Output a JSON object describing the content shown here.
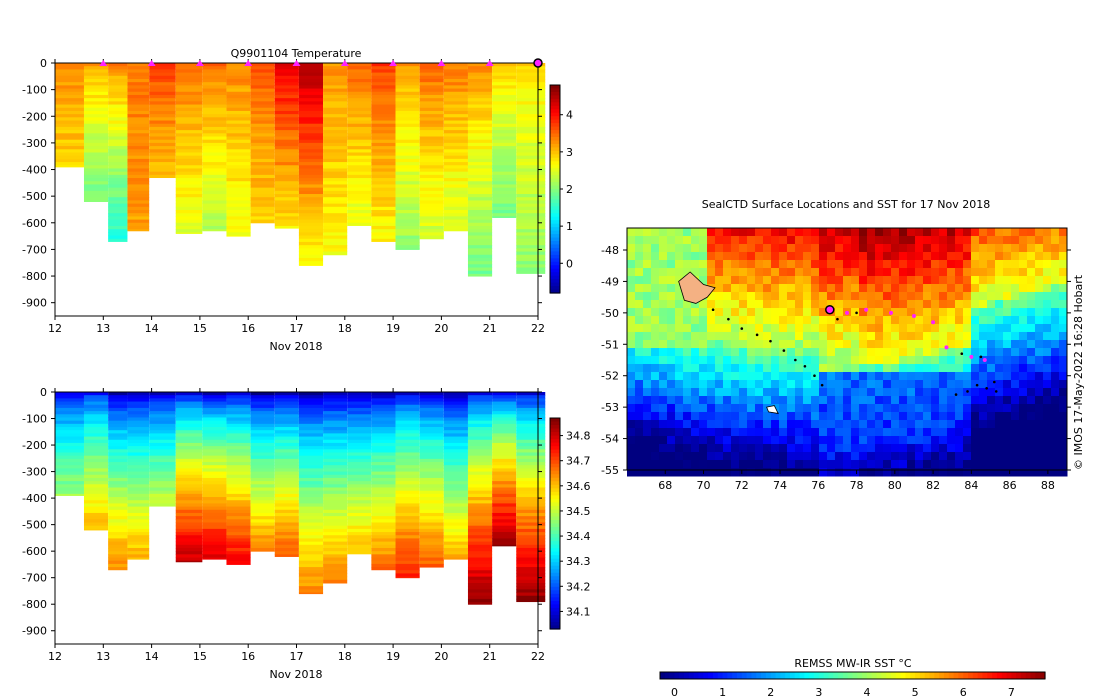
{
  "chart_data": [
    {
      "type": "heatmap",
      "title": "Q9901104  Temperature",
      "xlabel": "Nov 2018",
      "ylabel": "",
      "xlim": [
        12,
        22
      ],
      "ylim": [
        -950,
        0
      ],
      "xticks": [
        "12",
        "13",
        "14",
        "15",
        "16",
        "17",
        "18",
        "19",
        "20",
        "21",
        "22"
      ],
      "yticks": [
        "0",
        "-100",
        "-200",
        "-300",
        "-400",
        "-500",
        "-600",
        "-700",
        "-800",
        "-900"
      ],
      "colorbar": {
        "min": -0.8,
        "max": 4.8,
        "ticks": [
          "0",
          "1",
          "2",
          "3",
          "4"
        ]
      },
      "profiles": [
        {
          "x": 12.3,
          "depth": 390,
          "surface": 3.4,
          "deep": 2.9
        },
        {
          "x": 12.9,
          "depth": 520,
          "surface": 3.2,
          "deep": 1.9
        },
        {
          "x": 13.3,
          "depth": 670,
          "surface": 3.4,
          "deep": 1.5
        },
        {
          "x": 13.7,
          "depth": 630,
          "surface": 3.5,
          "deep": 3.2
        },
        {
          "x": 14.2,
          "depth": 430,
          "surface": 3.8,
          "deep": 3.0
        },
        {
          "x": 14.8,
          "depth": 640,
          "surface": 3.6,
          "deep": 2.5
        },
        {
          "x": 15.3,
          "depth": 630,
          "surface": 3.5,
          "deep": 2.3
        },
        {
          "x": 15.8,
          "depth": 650,
          "surface": 3.4,
          "deep": 2.6
        },
        {
          "x": 16.3,
          "depth": 600,
          "surface": 3.7,
          "deep": 2.9
        },
        {
          "x": 16.8,
          "depth": 620,
          "surface": 4.3,
          "deep": 2.8
        },
        {
          "x": 17.3,
          "depth": 760,
          "surface": 4.6,
          "deep": 2.7
        },
        {
          "x": 17.8,
          "depth": 720,
          "surface": 3.3,
          "deep": 2.7
        },
        {
          "x": 18.3,
          "depth": 610,
          "surface": 3.6,
          "deep": 2.5
        },
        {
          "x": 18.8,
          "depth": 670,
          "surface": 3.8,
          "deep": 2.7
        },
        {
          "x": 19.3,
          "depth": 700,
          "surface": 3.3,
          "deep": 2.1
        },
        {
          "x": 19.8,
          "depth": 660,
          "surface": 3.6,
          "deep": 2.4
        },
        {
          "x": 20.3,
          "depth": 630,
          "surface": 3.5,
          "deep": 2.4
        },
        {
          "x": 20.8,
          "depth": 800,
          "surface": 3.4,
          "deep": 1.9
        },
        {
          "x": 21.3,
          "depth": 580,
          "surface": 3.0,
          "deep": 1.9
        },
        {
          "x": 21.8,
          "depth": 790,
          "surface": 2.9,
          "deep": 2.1
        }
      ],
      "markers": {
        "x": [
          13,
          14,
          15,
          16,
          17,
          18,
          19,
          20,
          21
        ],
        "current": 22,
        "color": "#ff22ff"
      }
    },
    {
      "type": "heatmap",
      "title": "",
      "xlabel": "Nov 2018",
      "ylabel": "",
      "xlim": [
        12,
        22
      ],
      "ylim": [
        -950,
        0
      ],
      "xticks": [
        "12",
        "13",
        "14",
        "15",
        "16",
        "17",
        "18",
        "19",
        "20",
        "21",
        "22"
      ],
      "yticks": [
        "0",
        "-100",
        "-200",
        "-300",
        "-400",
        "-500",
        "-600",
        "-700",
        "-800",
        "-900"
      ],
      "colorbar": {
        "min": 34.03,
        "max": 34.87,
        "ticks": [
          "34.1",
          "34.2",
          "34.3",
          "34.4",
          "34.5",
          "34.6",
          "34.7",
          "34.8"
        ]
      },
      "profiles": [
        {
          "x": 12.3,
          "depth": 390,
          "surface": 34.12,
          "deep": 34.48
        },
        {
          "x": 12.9,
          "depth": 520,
          "surface": 34.14,
          "deep": 34.62
        },
        {
          "x": 13.3,
          "depth": 670,
          "surface": 34.06,
          "deep": 34.66
        },
        {
          "x": 13.7,
          "depth": 630,
          "surface": 34.06,
          "deep": 34.63
        },
        {
          "x": 14.2,
          "depth": 430,
          "surface": 34.08,
          "deep": 34.52
        },
        {
          "x": 14.8,
          "depth": 640,
          "surface": 34.1,
          "deep": 34.82
        },
        {
          "x": 15.3,
          "depth": 630,
          "surface": 34.08,
          "deep": 34.8
        },
        {
          "x": 15.8,
          "depth": 650,
          "surface": 34.08,
          "deep": 34.78
        },
        {
          "x": 16.3,
          "depth": 600,
          "surface": 34.05,
          "deep": 34.66
        },
        {
          "x": 16.8,
          "depth": 620,
          "surface": 34.06,
          "deep": 34.7
        },
        {
          "x": 17.3,
          "depth": 760,
          "surface": 34.05,
          "deep": 34.66
        },
        {
          "x": 17.8,
          "depth": 720,
          "surface": 34.06,
          "deep": 34.66
        },
        {
          "x": 18.3,
          "depth": 610,
          "surface": 34.06,
          "deep": 34.62
        },
        {
          "x": 18.8,
          "depth": 670,
          "surface": 34.06,
          "deep": 34.68
        },
        {
          "x": 19.3,
          "depth": 700,
          "surface": 34.1,
          "deep": 34.75
        },
        {
          "x": 19.8,
          "depth": 660,
          "surface": 34.08,
          "deep": 34.7
        },
        {
          "x": 20.3,
          "depth": 630,
          "surface": 34.05,
          "deep": 34.62
        },
        {
          "x": 20.8,
          "depth": 800,
          "surface": 34.12,
          "deep": 34.86
        },
        {
          "x": 21.3,
          "depth": 580,
          "surface": 34.12,
          "deep": 34.85
        },
        {
          "x": 21.8,
          "depth": 790,
          "surface": 34.1,
          "deep": 34.86
        }
      ]
    },
    {
      "type": "heatmap",
      "title": "SealCTD Surface Locations and SST for 17 Nov 2018",
      "xlabel": "",
      "ylabel": "",
      "xlim": [
        66,
        89
      ],
      "ylim": [
        -55,
        -47.3
      ],
      "xticks": [
        "68",
        "70",
        "72",
        "74",
        "76",
        "78",
        "80",
        "82",
        "84",
        "86",
        "88"
      ],
      "yticks": [
        "-48",
        "-49",
        "-50",
        "-51",
        "-52",
        "-53",
        "-54",
        "-55"
      ],
      "colorbar": {
        "label": "REMSS MW-IR SST °C",
        "min": -0.3,
        "max": 7.7,
        "ticks": [
          "0",
          "1",
          "2",
          "3",
          "4",
          "5",
          "6",
          "7"
        ]
      },
      "track": [
        [
          70.5,
          -49.9
        ],
        [
          71.3,
          -50.2
        ],
        [
          72.0,
          -50.5
        ],
        [
          72.8,
          -50.7
        ],
        [
          73.5,
          -50.9
        ],
        [
          74.2,
          -51.2
        ],
        [
          74.8,
          -51.5
        ],
        [
          75.3,
          -51.7
        ],
        [
          75.8,
          -52.0
        ],
        [
          76.2,
          -52.3
        ]
      ],
      "recent_positions": [
        [
          77.5,
          -50.0
        ],
        [
          78.5,
          -49.9
        ],
        [
          79.8,
          -50.0
        ],
        [
          81.0,
          -50.1
        ],
        [
          82.0,
          -50.3
        ],
        [
          82.7,
          -51.1
        ],
        [
          84.0,
          -51.4
        ],
        [
          84.7,
          -51.5
        ]
      ],
      "current_position": [
        76.6,
        -49.9
      ],
      "other_positions": [
        [
          83.2,
          -52.6
        ],
        [
          83.8,
          -52.5
        ],
        [
          84.3,
          -52.3
        ],
        [
          84.8,
          -52.4
        ],
        [
          85.2,
          -52.2
        ],
        [
          85.3,
          -52.5
        ],
        [
          84.5,
          -51.4
        ],
        [
          83.5,
          -51.3
        ],
        [
          77.0,
          -50.2
        ],
        [
          78.0,
          -50.0
        ]
      ]
    }
  ],
  "credit": "© IMOS 17-May-2022 16:28 Hobart"
}
